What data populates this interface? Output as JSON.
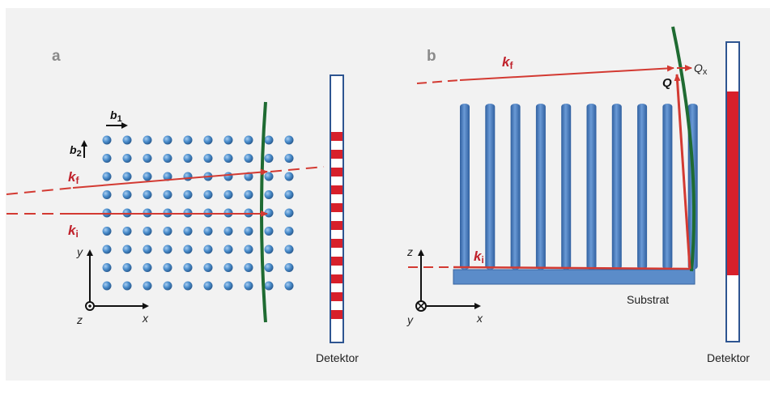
{
  "figure": {
    "panel_a": {
      "letter": "a",
      "b1": {
        "symbol": "b",
        "subscript": "1"
      },
      "b2": {
        "symbol": "b",
        "subscript": "2"
      },
      "kf": {
        "symbol": "k",
        "subscript": "f"
      },
      "ki": {
        "symbol": "k",
        "subscript": "i"
      },
      "axis_y": "y",
      "axis_x": "x",
      "axis_z": "z",
      "detector_label": "Detektor"
    },
    "panel_b": {
      "letter": "b",
      "kf": {
        "symbol": "k",
        "subscript": "f"
      },
      "ki": {
        "symbol": "k",
        "subscript": "i"
      },
      "q_label": "Q",
      "qx": {
        "symbol": "Q",
        "subscript": "x"
      },
      "axis_z": "z",
      "axis_y": "y",
      "axis_x": "x",
      "substrate_label": "Substrat",
      "detector_label": "Detektor"
    },
    "colors": {
      "panel_background": "#f2f2f2",
      "atom": "#4a8dcc",
      "beam": "#d33a32",
      "ewald_curve": "#1f6b32",
      "pillar": "#4e7dbe",
      "detector_fill": "#d7202b"
    }
  }
}
